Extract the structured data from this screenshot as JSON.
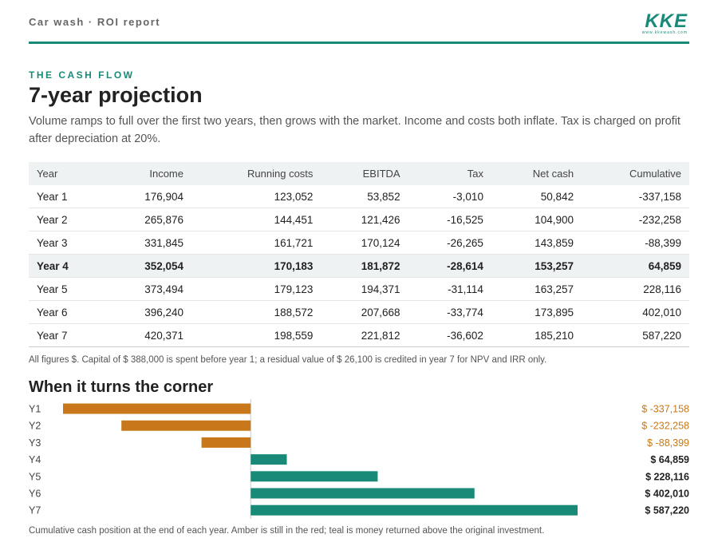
{
  "header": {
    "title": "Car wash · ROI report",
    "logo_text": "KKE",
    "logo_sub": "www.kkewash.com"
  },
  "section": {
    "eyebrow": "THE CASH FLOW",
    "title": "7-year projection",
    "lede": "Volume ramps to full over the first two years, then grows with the market. Income and costs both inflate. Tax is charged on profit after depreciation at 20%."
  },
  "table": {
    "columns": [
      "Year",
      "Income",
      "Running costs",
      "EBITDA",
      "Tax",
      "Net cash",
      "Cumulative"
    ],
    "rows": [
      [
        "Year 1",
        "176,904",
        "123,052",
        "53,852",
        "-3,010",
        "50,842",
        "-337,158"
      ],
      [
        "Year 2",
        "265,876",
        "144,451",
        "121,426",
        "-16,525",
        "104,900",
        "-232,258"
      ],
      [
        "Year 3",
        "331,845",
        "161,721",
        "170,124",
        "-26,265",
        "143,859",
        "-88,399"
      ],
      [
        "Year 4",
        "352,054",
        "170,183",
        "181,872",
        "-28,614",
        "153,257",
        "64,859"
      ],
      [
        "Year 5",
        "373,494",
        "179,123",
        "194,371",
        "-31,114",
        "163,257",
        "228,116"
      ],
      [
        "Year 6",
        "396,240",
        "188,572",
        "207,668",
        "-33,774",
        "173,895",
        "402,010"
      ],
      [
        "Year 7",
        "420,371",
        "198,559",
        "221,812",
        "-36,602",
        "185,210",
        "587,220"
      ]
    ],
    "highlight_row": 3
  },
  "note": "All figures $. Capital of $ 388,000 is spent before year 1; a residual value of $ 26,100 is credited in year 7 for NPV and IRR only.",
  "chart_title": "When it turns the corner",
  "chart_caption": "Cumulative cash position at the end of each year. Amber is still in the red; teal is money returned above the original investment.",
  "chart_data": {
    "type": "bar",
    "orientation": "horizontal",
    "categories": [
      "Y1",
      "Y2",
      "Y3",
      "Y4",
      "Y5",
      "Y6",
      "Y7"
    ],
    "values": [
      -337158,
      -232258,
      -88399,
      64859,
      228116,
      402010,
      587220
    ],
    "value_labels": [
      "$ -337,158",
      "$ -232,258",
      "$ -88,399",
      "$ 64,859",
      "$ 228,116",
      "$ 402,010",
      "$ 587,220"
    ],
    "colors": {
      "negative": "#c8781a",
      "positive": "#1a8a78"
    },
    "xlim": [
      -337158,
      587220
    ]
  },
  "colors": {
    "accent": "#1a8a78",
    "amber": "#c8781a"
  }
}
